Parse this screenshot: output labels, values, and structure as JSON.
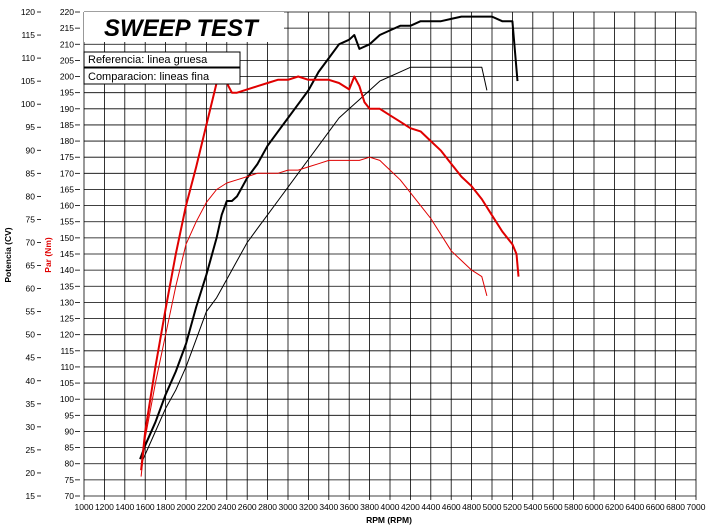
{
  "chart_data": {
    "type": "line",
    "title": "SWEEP TEST",
    "xlabel": "RPM (RPM)",
    "ylabel_power": "Potencia (CV)",
    "ylabel_torque": "Par (Nm)",
    "xlim": [
      1000,
      7000
    ],
    "ylim_power": [
      15,
      120
    ],
    "ylim_torque": [
      70,
      220
    ],
    "x_ticks": [
      1000,
      1200,
      1400,
      1600,
      1800,
      2000,
      2200,
      2400,
      2600,
      2800,
      3000,
      3200,
      3400,
      3600,
      3800,
      4000,
      4200,
      4400,
      4600,
      4800,
      5000,
      5200,
      5400,
      5600,
      5800,
      6000,
      6200,
      6400,
      6600,
      6800,
      7000
    ],
    "power_ticks": [
      15,
      20,
      25,
      30,
      35,
      40,
      45,
      50,
      55,
      60,
      65,
      70,
      75,
      80,
      85,
      90,
      95,
      100,
      105,
      110,
      115,
      120
    ],
    "torque_ticks": [
      70,
      75,
      80,
      85,
      90,
      95,
      100,
      105,
      110,
      115,
      120,
      125,
      130,
      135,
      140,
      145,
      150,
      155,
      160,
      165,
      170,
      175,
      180,
      185,
      190,
      195,
      200,
      205,
      210,
      215,
      220
    ],
    "legend": [
      "Referencia: linea gruesa",
      "Comparacion: lineas fina"
    ],
    "colors": {
      "power": "#000000",
      "torque": "#e00000",
      "grid": "#000000"
    },
    "series": [
      {
        "name": "Potencia referencia",
        "axis": "power",
        "style": "thick",
        "x": [
          1550,
          1600,
          1700,
          1800,
          1900,
          2000,
          2100,
          2200,
          2300,
          2350,
          2400,
          2450,
          2500,
          2550,
          2600,
          2700,
          2800,
          2900,
          3000,
          3100,
          3200,
          3300,
          3400,
          3500,
          3600,
          3650,
          3700,
          3800,
          3900,
          4000,
          4100,
          4200,
          4300,
          4400,
          4500,
          4600,
          4700,
          4800,
          4900,
          5000,
          5100,
          5150,
          5200,
          5250
        ],
        "y": [
          23,
          26,
          31,
          37,
          42,
          48,
          56,
          63,
          71,
          76,
          79,
          79,
          80,
          82,
          84,
          87,
          91,
          94,
          97,
          100,
          103,
          107,
          110,
          113,
          114,
          115,
          112,
          113,
          115,
          116,
          117,
          117,
          118,
          118,
          118,
          118.5,
          119,
          119,
          119,
          119,
          118,
          118,
          118,
          105
        ]
      },
      {
        "name": "Potencia comparacion",
        "axis": "power",
        "style": "thin",
        "x": [
          1560,
          1600,
          1700,
          1800,
          1900,
          2000,
          2100,
          2200,
          2300,
          2400,
          2500,
          2600,
          2700,
          2800,
          2900,
          3000,
          3100,
          3200,
          3300,
          3400,
          3500,
          3600,
          3700,
          3800,
          3900,
          4000,
          4100,
          4200,
          4300,
          4400,
          4500,
          4600,
          4700,
          4800,
          4900,
          4950
        ],
        "y": [
          22,
          24,
          29,
          34,
          38,
          43,
          49,
          55,
          58,
          62,
          66,
          70,
          73,
          76,
          79,
          82,
          85,
          88,
          91,
          94,
          97,
          99,
          101,
          103,
          105,
          106,
          107,
          108,
          108,
          108,
          108,
          108,
          108,
          108,
          108,
          103
        ]
      },
      {
        "name": "Par referencia",
        "axis": "torque",
        "style": "thick",
        "x": [
          1560,
          1600,
          1700,
          1800,
          1900,
          2000,
          2100,
          2200,
          2300,
          2350,
          2400,
          2450,
          2500,
          2600,
          2700,
          2800,
          2900,
          3000,
          3100,
          3200,
          3300,
          3400,
          3500,
          3600,
          3650,
          3700,
          3750,
          3800,
          3900,
          4000,
          4100,
          4200,
          4300,
          4400,
          4500,
          4600,
          4700,
          4800,
          4900,
          5000,
          5100,
          5200,
          5240,
          5260
        ],
        "y": [
          78,
          90,
          110,
          128,
          145,
          160,
          172,
          185,
          198,
          201,
          198,
          195,
          195,
          196,
          197,
          198,
          199,
          199,
          200,
          199,
          199,
          199,
          198,
          196,
          200,
          197,
          192,
          190,
          190,
          188,
          186,
          184,
          183,
          180,
          177,
          173,
          169,
          166,
          162,
          157,
          152,
          148,
          145,
          138
        ]
      },
      {
        "name": "Par comparacion",
        "axis": "torque",
        "style": "thin",
        "x": [
          1560,
          1600,
          1700,
          1800,
          1900,
          2000,
          2100,
          2200,
          2300,
          2400,
          2500,
          2600,
          2700,
          2800,
          2900,
          3000,
          3100,
          3200,
          3300,
          3400,
          3500,
          3600,
          3700,
          3800,
          3900,
          4000,
          4100,
          4200,
          4300,
          4400,
          4500,
          4600,
          4700,
          4800,
          4900,
          4950
        ],
        "y": [
          76,
          88,
          105,
          120,
          135,
          148,
          155,
          161,
          165,
          167,
          168,
          169,
          170,
          170,
          170,
          171,
          171,
          172,
          173,
          174,
          174,
          174,
          174,
          175,
          174,
          171,
          168,
          164,
          160,
          156,
          151,
          146,
          143,
          140,
          138,
          132
        ]
      }
    ]
  }
}
